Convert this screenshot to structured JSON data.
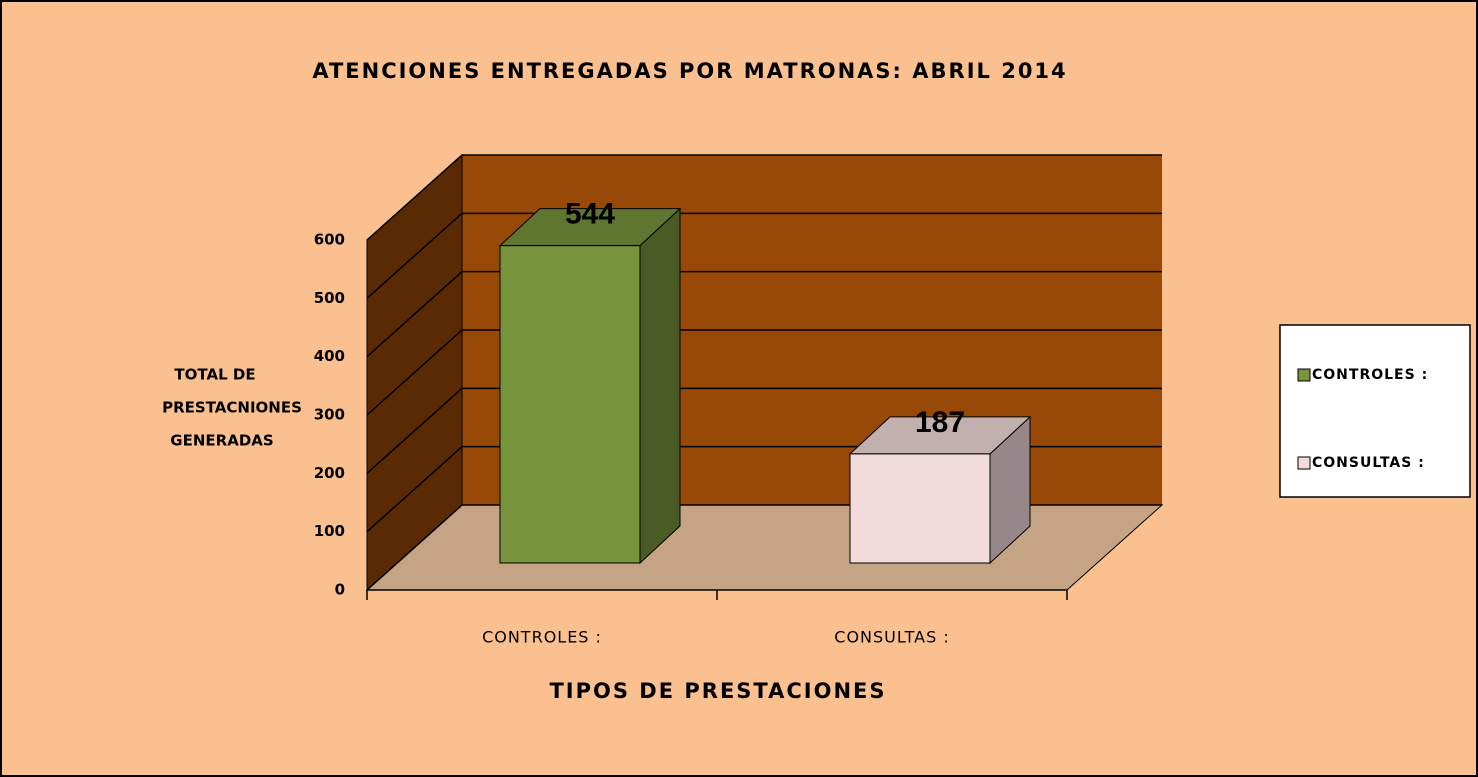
{
  "chart_data": {
    "type": "bar3d",
    "title": "ATENCIONES  ENTREGADAS POR  MATRONAS:  ABRIL  2014",
    "categories": [
      "CONTROLES :",
      "CONSULTAS :"
    ],
    "values": [
      544,
      187
    ],
    "colors": [
      "#77933c",
      "#f2dcdb"
    ],
    "ylim": [
      0,
      600
    ],
    "yticks": [
      0,
      100,
      200,
      300,
      400,
      500,
      600
    ],
    "ylabel": [
      "TOTAL DE",
      "PRESTACNIONES",
      "GENERADAS"
    ],
    "xlabel": "TIPOS  DE PRESTACIONES",
    "grid": true,
    "legend": "right"
  }
}
